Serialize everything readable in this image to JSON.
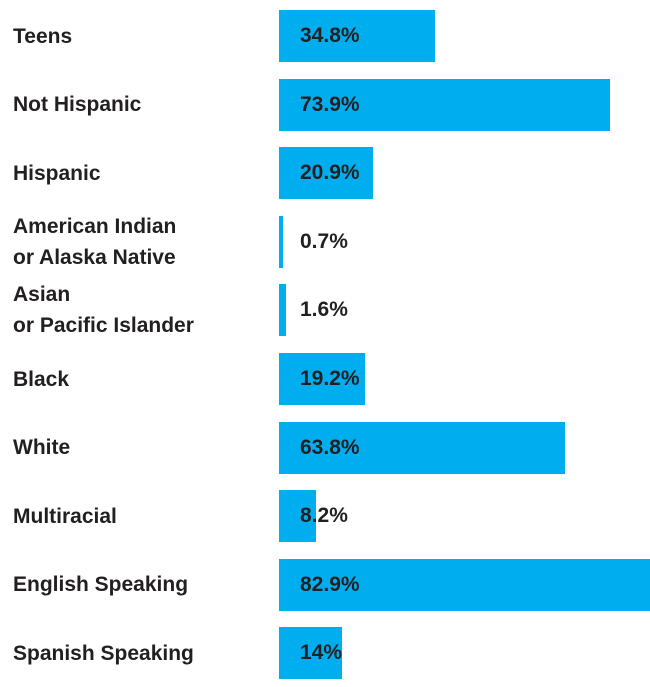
{
  "chart_data": {
    "type": "bar",
    "orientation": "horizontal",
    "categories": [
      "Teens",
      "Not Hispanic",
      "Hispanic",
      "American Indian\nor Alaska Native",
      "Asian\nor Pacific Islander",
      "Black",
      "White",
      "Multiracial",
      "English Speaking",
      "Spanish Speaking"
    ],
    "values": [
      34.8,
      73.9,
      20.9,
      0.7,
      1.6,
      19.2,
      63.8,
      8.2,
      82.9,
      14
    ],
    "value_labels": [
      "34.8%",
      "73.9%",
      "20.9%",
      "0.7%",
      "1.6%",
      "19.2%",
      "63.8%",
      "8.2%",
      "82.9%",
      "14%"
    ],
    "color": "#00aeef"
  }
}
